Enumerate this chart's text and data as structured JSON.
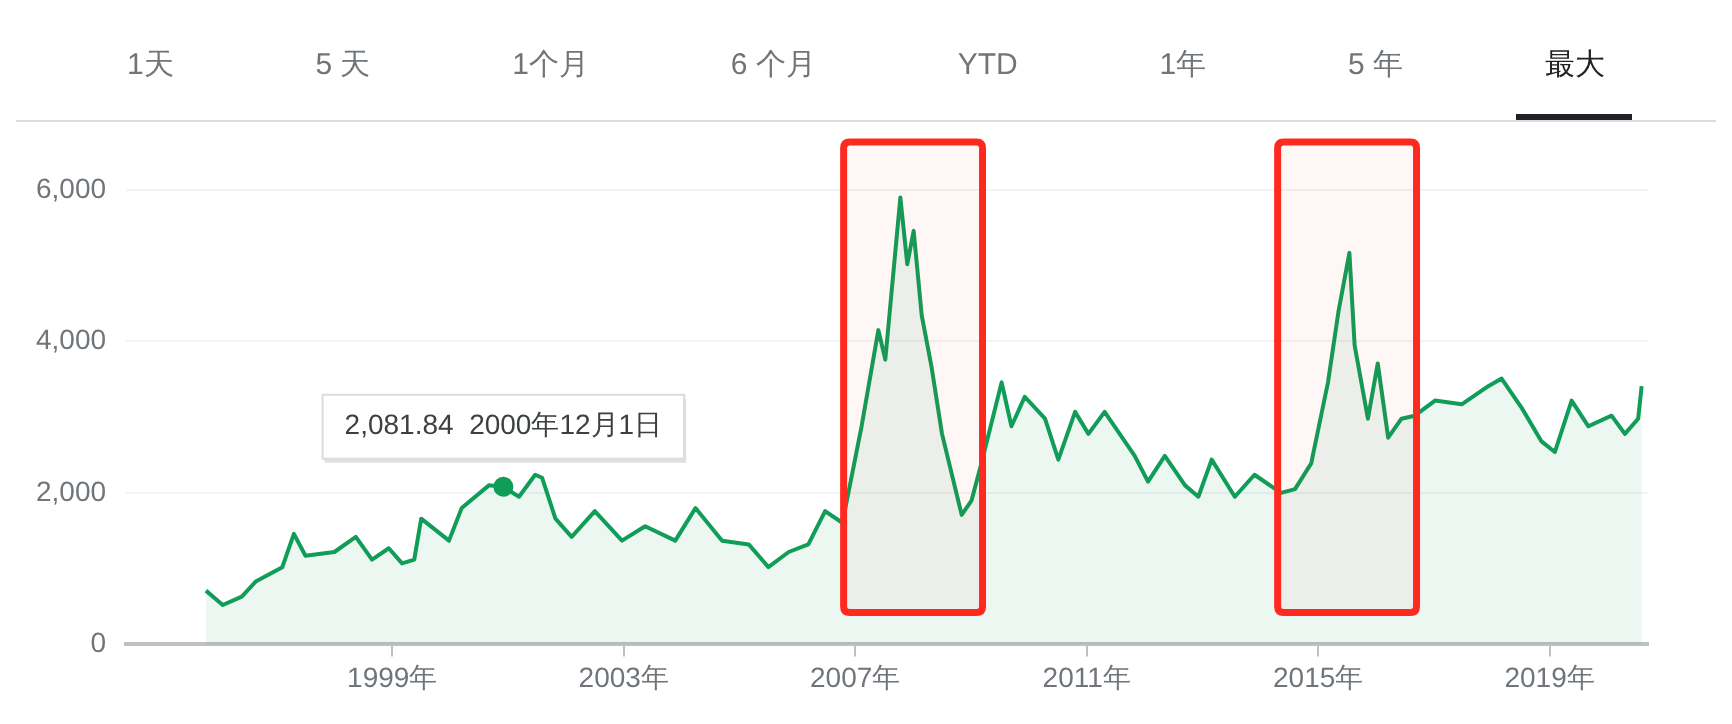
{
  "chart_data": {
    "type": "area",
    "xlim": [
      1994.4,
      2020.7
    ],
    "ylim": [
      0,
      6000
    ],
    "xticks": [
      {
        "value": 1999,
        "label": "1999年"
      },
      {
        "value": 2003,
        "label": "2003年"
      },
      {
        "value": 2007,
        "label": "2007年"
      },
      {
        "value": 2011,
        "label": "2011年"
      },
      {
        "value": 2015,
        "label": "2015年"
      },
      {
        "value": 2019,
        "label": "2019年"
      }
    ],
    "yticks": [
      {
        "value": 0,
        "label": "0"
      },
      {
        "value": 2000,
        "label": "2,000"
      },
      {
        "value": 4000,
        "label": "4,000"
      },
      {
        "value": 6000,
        "label": "6,000"
      }
    ],
    "grid": "y",
    "legend": false,
    "marker": "none",
    "line_style": "solid",
    "series": [
      {
        "color": "#0f9d58",
        "x": [
          1995.78,
          1996.07,
          1996.4,
          1996.64,
          1997.1,
          1997.3,
          1997.5,
          1998.0,
          1998.37,
          1998.65,
          1998.94,
          1999.17,
          1999.38,
          1999.5,
          1999.98,
          2000.2,
          2000.67,
          2000.92,
          2001.19,
          2001.47,
          2001.59,
          2001.82,
          2002.1,
          2002.5,
          2002.97,
          2003.37,
          2003.89,
          2004.24,
          2004.7,
          2005.16,
          2005.5,
          2005.85,
          2006.19,
          2006.48,
          2006.77,
          2006.83,
          2007.11,
          2007.4,
          2007.52,
          2007.78,
          2007.9,
          2008.01,
          2008.15,
          2008.32,
          2008.5,
          2008.84,
          2009.01,
          2009.18,
          2009.53,
          2009.7,
          2009.93,
          2010.28,
          2010.51,
          2010.8,
          2011.03,
          2011.31,
          2011.83,
          2012.06,
          2012.35,
          2012.7,
          2012.93,
          2013.16,
          2013.56,
          2013.9,
          2014.36,
          2014.6,
          2014.88,
          2015.17,
          2015.35,
          2015.54,
          2015.63,
          2015.86,
          2016.03,
          2016.21,
          2016.44,
          2016.67,
          2017.02,
          2017.48,
          2017.94,
          2018.17,
          2018.52,
          2018.86,
          2019.09,
          2019.38,
          2019.67,
          2020.07,
          2020.3,
          2020.53,
          2020.59
        ],
        "values": [
          710,
          520,
          630,
          830,
          1020,
          1460,
          1170,
          1220,
          1420,
          1120,
          1270,
          1070,
          1120,
          1660,
          1370,
          1800,
          2100,
          2080,
          1950,
          2240,
          2200,
          1660,
          1420,
          1760,
          1370,
          1560,
          1370,
          1800,
          1370,
          1320,
          1020,
          1220,
          1320,
          1760,
          1610,
          1800,
          2880,
          4150,
          3760,
          5900,
          5020,
          5460,
          4340,
          3660,
          2780,
          1710,
          1900,
          2390,
          3460,
          2880,
          3270,
          2980,
          2440,
          3070,
          2780,
          3070,
          2490,
          2150,
          2490,
          2100,
          1950,
          2440,
          1950,
          2240,
          2000,
          2050,
          2390,
          3460,
          4390,
          5170,
          3950,
          2980,
          3710,
          2730,
          2980,
          3020,
          3220,
          3170,
          3410,
          3510,
          3120,
          2680,
          2540,
          3220,
          2880,
          3020,
          2780,
          2980,
          3410
        ]
      }
    ],
    "bands": [
      {
        "axis": "x",
        "from": 2006.8,
        "to": 2009.2,
        "color": "#ff2a1f"
      },
      {
        "axis": "x",
        "from": 2014.3,
        "to": 2016.7,
        "color": "#ff2a1f"
      }
    ],
    "annotations": [
      "1天",
      "5 天",
      "1个月",
      "6 个月",
      "YTD",
      "1年",
      "5 年",
      "最大",
      {
        "text": "2,081.84  2000年12月1日",
        "x": 2000.92,
        "y": 2081.84
      }
    ]
  }
}
